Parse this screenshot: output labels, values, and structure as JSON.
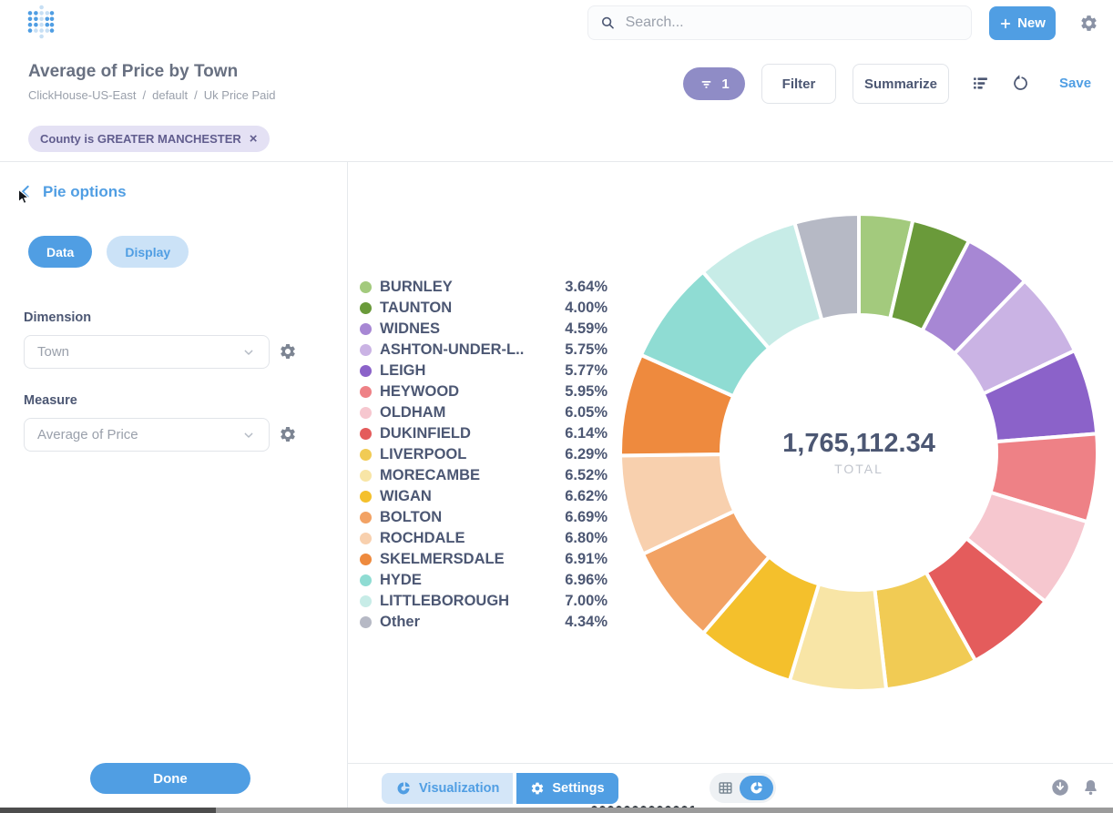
{
  "header": {
    "search_placeholder": "Search...",
    "new_label": "New"
  },
  "title_bar": {
    "title": "Average of Price by Town",
    "breadcrumb": [
      "ClickHouse-US-East",
      "default",
      "Uk Price Paid"
    ],
    "breadcrumb_separator": "/",
    "filter_count": "1",
    "filter_label": "Filter",
    "summarize_label": "Summarize",
    "save_label": "Save"
  },
  "filter_chip": {
    "label": "County is GREATER MANCHESTER",
    "close_glyph": "×"
  },
  "sidebar": {
    "panel_title": "Pie options",
    "tabs": [
      {
        "label": "Data",
        "active": true
      },
      {
        "label": "Display",
        "active": false
      }
    ],
    "dimension_label": "Dimension",
    "dimension_value": "Town",
    "measure_label": "Measure",
    "measure_value": "Average of Price",
    "done_label": "Done"
  },
  "chart_footer": {
    "visualization_label": "Visualization",
    "settings_label": "Settings"
  },
  "icons": {
    "logo": "metabase-dot-grid",
    "search": "magnifier",
    "new": "plus",
    "header_settings": "gear",
    "filter_pill": "funnel",
    "notebook": "notebook-list",
    "refresh": "circular-arrow",
    "back": "chevron-left",
    "select_caret": "chevron-down",
    "field_settings": "gear",
    "visualization": "pie-chart",
    "table_view": "table-grid",
    "download": "circle-down-arrow",
    "alerts": "bell",
    "mouse": "pointer-cursor"
  },
  "colors": {
    "brand": "#509ee3",
    "brand_light": "#cbe2f7",
    "filter_purple": "#8f8cc6",
    "chip_bg": "#e4e1f4",
    "text_dark": "#4c5773",
    "text_light": "#9aa0ab",
    "border": "#e6e9ec"
  },
  "chart_data": {
    "type": "pie",
    "donut": true,
    "title": "Average of Price by Town",
    "dimension": "Town",
    "measure": "Average of Price",
    "total_value": "1,765,112.34",
    "total_label": "TOTAL",
    "legend_position": "left",
    "start_angle_deg": 0,
    "direction": "clockwise",
    "slices": [
      {
        "label": "BURNLEY",
        "percent": 3.64,
        "percent_label": "3.64%",
        "color": "#a3ca7d"
      },
      {
        "label": "TAUNTON",
        "percent": 4.0,
        "percent_label": "4.00%",
        "color": "#6a9a3a"
      },
      {
        "label": "WIDNES",
        "percent": 4.59,
        "percent_label": "4.59%",
        "color": "#a787d4"
      },
      {
        "label": "ASHTON-UNDER-L..",
        "percent": 5.75,
        "percent_label": "5.75%",
        "color": "#cab3e4"
      },
      {
        "label": "LEIGH",
        "percent": 5.77,
        "percent_label": "5.77%",
        "color": "#8b62c9"
      },
      {
        "label": "HEYWOOD",
        "percent": 5.95,
        "percent_label": "5.95%",
        "color": "#ee8186"
      },
      {
        "label": "OLDHAM",
        "percent": 6.05,
        "percent_label": "6.05%",
        "color": "#f6c7cf"
      },
      {
        "label": "DUKINFIELD",
        "percent": 6.14,
        "percent_label": "6.14%",
        "color": "#e45c5c"
      },
      {
        "label": "LIVERPOOL",
        "percent": 6.29,
        "percent_label": "6.29%",
        "color": "#f1cb54"
      },
      {
        "label": "MORECAMBE",
        "percent": 6.52,
        "percent_label": "6.52%",
        "color": "#f8e5a6"
      },
      {
        "label": "WIGAN",
        "percent": 6.62,
        "percent_label": "6.62%",
        "color": "#f4c02c"
      },
      {
        "label": "BOLTON",
        "percent": 6.69,
        "percent_label": "6.69%",
        "color": "#f2a264"
      },
      {
        "label": "ROCHDALE",
        "percent": 6.8,
        "percent_label": "6.80%",
        "color": "#f8d0ae"
      },
      {
        "label": "SKELMERSDALE",
        "percent": 6.91,
        "percent_label": "6.91%",
        "color": "#ee8a3e"
      },
      {
        "label": "HYDE",
        "percent": 6.96,
        "percent_label": "6.96%",
        "color": "#8fdcd3"
      },
      {
        "label": "LITTLEBOROUGH",
        "percent": 7.0,
        "percent_label": "7.00%",
        "color": "#c7ece7"
      },
      {
        "label": "Other",
        "percent": 4.34,
        "percent_label": "4.34%",
        "color": "#b6b9c5"
      }
    ]
  }
}
